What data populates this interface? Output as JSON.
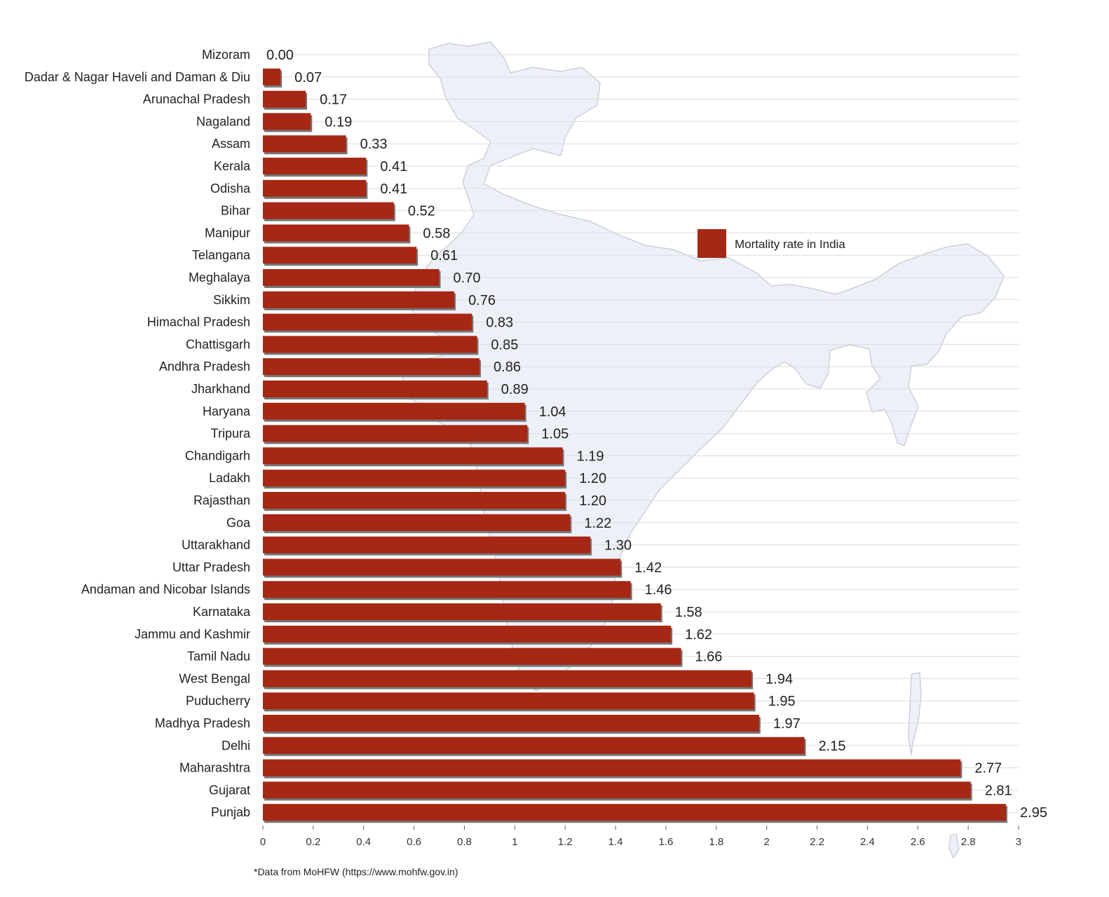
{
  "chart_data": {
    "type": "bar",
    "orientation": "horizontal",
    "categories": [
      "Mizoram",
      "Dadar & Nagar Haveli and Daman & Diu",
      "Arunachal Pradesh",
      "Nagaland",
      "Assam",
      "Kerala",
      "Odisha",
      "Bihar",
      "Manipur",
      "Telangana",
      "Meghalaya",
      "Sikkim",
      "Himachal Pradesh",
      "Chattisgarh",
      "Andhra Pradesh",
      "Jharkhand",
      "Haryana",
      "Tripura",
      "Chandigarh",
      "Ladakh",
      "Rajasthan",
      "Goa",
      "Uttarakhand",
      "Uttar Pradesh",
      "Andaman and Nicobar Islands",
      "Karnataka",
      "Jammu and Kashmir",
      "Tamil Nadu",
      "West Bengal",
      "Puducherry",
      "Madhya Pradesh",
      "Delhi",
      "Maharashtra",
      "Gujarat",
      "Punjab"
    ],
    "series": [
      {
        "name": "Mortality rate in India",
        "color": "#a52714",
        "values": [
          0.0,
          0.07,
          0.17,
          0.19,
          0.33,
          0.41,
          0.41,
          0.52,
          0.58,
          0.61,
          0.7,
          0.76,
          0.83,
          0.85,
          0.86,
          0.89,
          1.04,
          1.05,
          1.19,
          1.2,
          1.2,
          1.22,
          1.3,
          1.42,
          1.46,
          1.58,
          1.62,
          1.66,
          1.94,
          1.95,
          1.97,
          2.15,
          2.77,
          2.81,
          2.95
        ],
        "value_labels": [
          "0.00",
          "0.07",
          "0.17",
          "0.19",
          "0.33",
          "0.41",
          "0.41",
          "0.52",
          "0.58",
          "0.61",
          "0.70",
          "0.76",
          "0.83",
          "0.85",
          "0.86",
          "0.89",
          "1.04",
          "1.05",
          "1.19",
          "1.20",
          "1.20",
          "1.22",
          "1.30",
          "1.42",
          "1.46",
          "1.58",
          "1.62",
          "1.66",
          "1.94",
          "1.95",
          "1.97",
          "2.15",
          "2.77",
          "2.81",
          "2.95"
        ]
      }
    ],
    "xlim": [
      0,
      3
    ],
    "xticks": [
      "0",
      "0.2",
      "0.4",
      "0.6",
      "0.8",
      "1",
      "1.2",
      "1.4",
      "1.6",
      "1.8",
      "2",
      "2.2",
      "2.4",
      "2.6",
      "2.8",
      "3"
    ],
    "title": "",
    "xlabel": "",
    "ylabel": "",
    "grid": true,
    "legend": "right",
    "background": "map of India"
  },
  "footnote": "*Data from MoHFW (https://www.mohfw.gov.in)"
}
